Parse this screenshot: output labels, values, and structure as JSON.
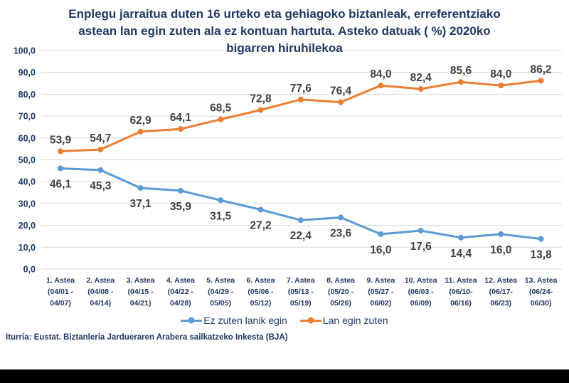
{
  "title": {
    "text": "Enplegu jarraitua duten 16 urteko eta gehiagoko biztanleak, erreferentziako astean lan egin zuten ala ez kontuan hartuta. Asteko datuak ( %) 2020ko bigarren hiruhilekoa",
    "lines": [
      "Enplegu jarraitua duten 16 urteko eta gehiagoko biztanleak, erreferentziako",
      "astean lan egin zuten ala ez kontuan hartuta. Asteko datuak ( %) 2020ko",
      "bigarren hiruhilekoa"
    ]
  },
  "chart_data": {
    "type": "line",
    "title": "Enplegu jarraitua duten 16 urteko eta gehiagoko biztanleak, erreferentziako astean lan egin zuten ala ez kontuan hartuta. Asteko datuak ( %) 2020ko bigarren hiruhilekoa",
    "categories": [
      {
        "week": "1. Astea",
        "dates": [
          "(04/01 -",
          "04/07)"
        ]
      },
      {
        "week": "2. Astea",
        "dates": [
          "(04/08 -",
          "04/14)"
        ]
      },
      {
        "week": "3. Astea",
        "dates": [
          "(04/15 -",
          "04/21)"
        ]
      },
      {
        "week": "4. Astea",
        "dates": [
          "(04/22 -",
          "04/28)"
        ]
      },
      {
        "week": "5. Astea",
        "dates": [
          "(04/29 -",
          "05/05)"
        ]
      },
      {
        "week": "6. Astea",
        "dates": [
          "(05/06 -",
          "05/12)"
        ]
      },
      {
        "week": "7. Astea",
        "dates": [
          "(05/13 -",
          "05/19)"
        ]
      },
      {
        "week": "8. Astea",
        "dates": [
          "(05/20 -",
          "05/26)"
        ]
      },
      {
        "week": "9. Astea",
        "dates": [
          "(05/27 -",
          "06/02)"
        ]
      },
      {
        "week": "10. Astea",
        "dates": [
          "(06/03 -",
          "06/09)"
        ]
      },
      {
        "week": "11. Astea",
        "dates": [
          "(06/10-",
          "06/16)"
        ]
      },
      {
        "week": "12. Astea",
        "dates": [
          "(06/17-",
          "06/23)"
        ]
      },
      {
        "week": "13. Astea",
        "dates": [
          "(06/24-",
          "06/30)"
        ]
      }
    ],
    "series": [
      {
        "name": "Ez zuten lanik egin",
        "color": "#5B9BD5",
        "values": [
          46.1,
          45.3,
          37.1,
          35.9,
          31.5,
          27.2,
          22.4,
          23.6,
          16.0,
          17.6,
          14.4,
          16.0,
          13.8
        ],
        "labels": [
          "46,1",
          "45,3",
          "37,1",
          "35,9",
          "31,5",
          "27,2",
          "22,4",
          "23,6",
          "16,0",
          "17,6",
          "14,4",
          "16,0",
          "13,8"
        ],
        "label_position": "below"
      },
      {
        "name": "Lan egin zuten",
        "color": "#ED7D31",
        "values": [
          53.9,
          54.7,
          62.9,
          64.1,
          68.5,
          72.8,
          77.6,
          76.4,
          84.0,
          82.4,
          85.6,
          84.0,
          86.2
        ],
        "labels": [
          "53,9",
          "54,7",
          "62,9",
          "64,1",
          "68,5",
          "72,8",
          "77,6",
          "76,4",
          "84,0",
          "82,4",
          "85,6",
          "84,0",
          "86,2"
        ],
        "label_position": "above"
      }
    ],
    "ylim": [
      0,
      100
    ],
    "ytick_values": [
      0,
      10,
      20,
      30,
      40,
      50,
      60,
      70,
      80,
      90,
      100
    ],
    "ytick_labels": [
      "0,0",
      "10,0",
      "20,0",
      "30,0",
      "40,0",
      "50,0",
      "60,0",
      "70,0",
      "80,0",
      "90,0",
      "100,0"
    ],
    "grid": true,
    "legend_position": "bottom"
  },
  "legend": {
    "items": [
      {
        "label": "Ez zuten lanik egin",
        "color": "#5B9BD5"
      },
      {
        "label": "Lan egin zuten",
        "color": "#ED7D31"
      }
    ]
  },
  "source": {
    "text": "Iturria: Eustat. Biztanleria Jardueraren Arabera sailkatzeko Inkesta (BJA)"
  },
  "colors": {
    "title": "#1F3864",
    "axis_labels": "#1F3864",
    "legend_text": "#1F3864",
    "source_text": "#1F3864",
    "data_labels": "#404040",
    "grid": "#D9D9D9",
    "footer_bar": "#000000",
    "background": "#FFFFFF"
  }
}
